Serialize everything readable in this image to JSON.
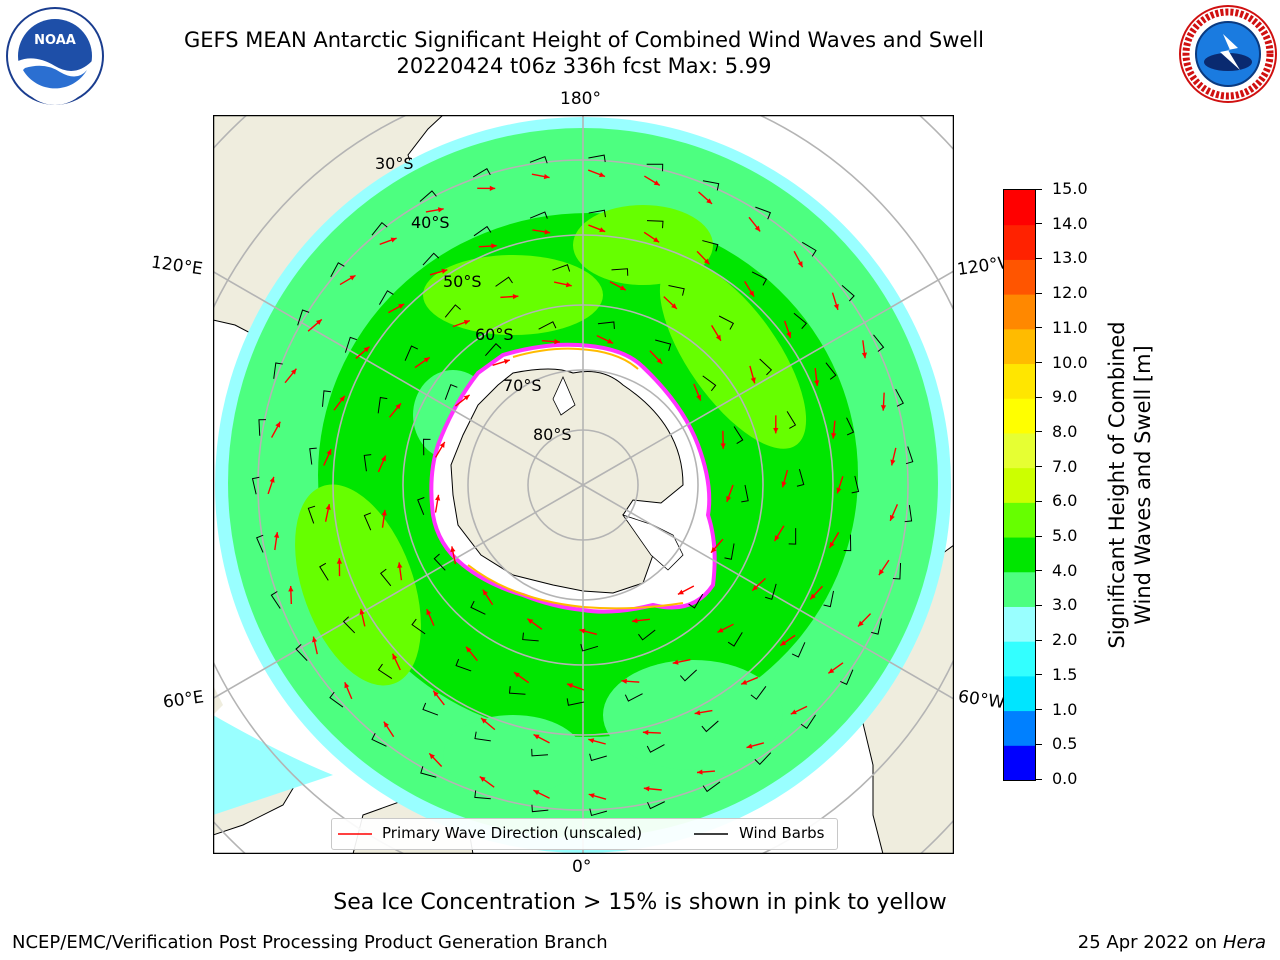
{
  "header": {
    "title_line1": "GEFS MEAN Antarctic Significant Height of Combined Wind Waves and Swell",
    "title_line2": "20220424 t06z 336h fcst   Max: 5.99"
  },
  "logos": {
    "noaa_text": "NOAA",
    "nws_text": "NATIONAL WEATHER SERVICE"
  },
  "map": {
    "projection": "south-polar-stereographic",
    "longitude_labels": {
      "top": "180°",
      "bottom": "0°",
      "upper_left": "120°E",
      "lower_left": "60°E",
      "upper_right": "120°W",
      "lower_right": "60°W"
    },
    "latitude_labels": [
      "30°S",
      "40°S",
      "50°S",
      "60°S",
      "70°S",
      "80°S"
    ],
    "colors": {
      "land": "#efedde",
      "sea_ice": "#ffffff",
      "ice_edge": "#ff33ff",
      "wave_arrow": "#ff0000",
      "wind_barb": "#000000",
      "grid": "#b4b4b4"
    }
  },
  "colorbar": {
    "label": "Significant Height of Combined Wind Waves and Swell [m]",
    "label_line1": "Significant Height of Combined",
    "label_line2": "Wind Waves and Swell [m]",
    "ticks": [
      "15.0",
      "14.0",
      "13.0",
      "12.0",
      "11.0",
      "10.0",
      "9.0",
      "8.0",
      "7.0",
      "6.0",
      "5.0",
      "4.0",
      "3.0",
      "2.0",
      "1.5",
      "1.0",
      "0.5",
      "0.0"
    ],
    "levels": [
      0,
      0.5,
      1.0,
      1.5,
      2.0,
      3.0,
      4.0,
      5.0,
      6.0,
      7.0,
      8.0,
      9.0,
      10.0,
      11.0,
      12.0,
      13.0,
      14.0,
      15.0
    ],
    "bin_colors": [
      "#0000ff",
      "#0080ff",
      "#00e5ff",
      "#33ffff",
      "#99ffff",
      "#4dff80",
      "#00e600",
      "#66ff00",
      "#ccff00",
      "#e6ff33",
      "#ffff00",
      "#ffe600",
      "#ffbb00",
      "#ff8800",
      "#ff5500",
      "#ff2200",
      "#ff0000"
    ]
  },
  "legend": {
    "wave_label": "Primary Wave Direction (unscaled)",
    "wind_label": "Wind Barbs"
  },
  "footer": {
    "note": "Sea Ice Concentration > 15% is shown in pink to yellow",
    "left": "NCEP/EMC/Verification Post Processing Product Generation Branch",
    "right_date": "25 Apr 2022 on ",
    "right_machine": "Hera"
  }
}
